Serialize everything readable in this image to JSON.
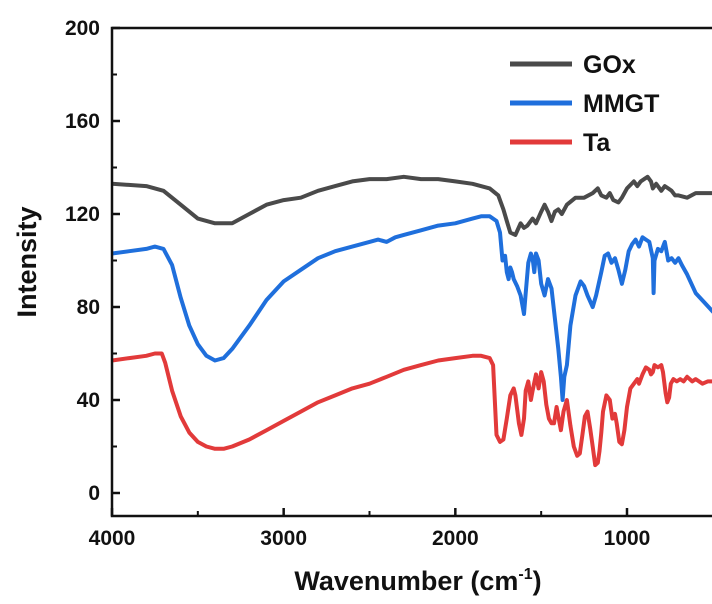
{
  "chart_data": {
    "type": "line",
    "title": "",
    "xlabel": "Wavenumber (cm",
    "xlabel_sup": "-1",
    "xlabel_close": ")",
    "ylabel": "Intensity",
    "xlim": [
      4000,
      500
    ],
    "ylim": [
      -10,
      200
    ],
    "x_reversed": true,
    "x_ticks": [
      4000,
      3000,
      2000,
      1000
    ],
    "y_ticks": [
      0,
      40,
      80,
      120,
      160,
      200
    ],
    "x_tick_labels": [
      "4000",
      "3000",
      "2000",
      "1000"
    ],
    "y_tick_labels": [
      "0",
      "40",
      "80",
      "120",
      "160",
      "200"
    ],
    "grid": false,
    "legend_position": "top-right",
    "series": [
      {
        "name": "GOx",
        "color": "#4a4a4a",
        "points": [
          [
            4000,
            133
          ],
          [
            3800,
            132
          ],
          [
            3700,
            130
          ],
          [
            3600,
            124
          ],
          [
            3500,
            118
          ],
          [
            3400,
            116
          ],
          [
            3300,
            116
          ],
          [
            3200,
            120
          ],
          [
            3100,
            124
          ],
          [
            3000,
            126
          ],
          [
            2900,
            127
          ],
          [
            2800,
            130
          ],
          [
            2700,
            132
          ],
          [
            2600,
            134
          ],
          [
            2500,
            135
          ],
          [
            2400,
            135
          ],
          [
            2300,
            136
          ],
          [
            2200,
            135
          ],
          [
            2100,
            135
          ],
          [
            2000,
            134
          ],
          [
            1900,
            133
          ],
          [
            1800,
            131
          ],
          [
            1750,
            128
          ],
          [
            1720,
            122
          ],
          [
            1700,
            117
          ],
          [
            1680,
            112
          ],
          [
            1650,
            111
          ],
          [
            1620,
            116
          ],
          [
            1600,
            114
          ],
          [
            1580,
            115
          ],
          [
            1550,
            118
          ],
          [
            1530,
            116
          ],
          [
            1500,
            121
          ],
          [
            1480,
            124
          ],
          [
            1460,
            121
          ],
          [
            1440,
            117
          ],
          [
            1420,
            121
          ],
          [
            1400,
            122
          ],
          [
            1380,
            120
          ],
          [
            1350,
            124
          ],
          [
            1300,
            127
          ],
          [
            1250,
            127
          ],
          [
            1200,
            129
          ],
          [
            1170,
            131
          ],
          [
            1150,
            128
          ],
          [
            1120,
            127
          ],
          [
            1100,
            129
          ],
          [
            1080,
            126
          ],
          [
            1050,
            125
          ],
          [
            1030,
            127
          ],
          [
            1000,
            131
          ],
          [
            960,
            134
          ],
          [
            940,
            132
          ],
          [
            920,
            134
          ],
          [
            900,
            135
          ],
          [
            880,
            136
          ],
          [
            860,
            134
          ],
          [
            850,
            131
          ],
          [
            830,
            133
          ],
          [
            800,
            130
          ],
          [
            780,
            132
          ],
          [
            760,
            131
          ],
          [
            740,
            130
          ],
          [
            720,
            128
          ],
          [
            700,
            128
          ],
          [
            650,
            127
          ],
          [
            600,
            129
          ],
          [
            550,
            129
          ],
          [
            500,
            129
          ]
        ]
      },
      {
        "name": "MMGT",
        "color": "#1f6fdc",
        "points": [
          [
            4000,
            103
          ],
          [
            3900,
            104
          ],
          [
            3800,
            105
          ],
          [
            3750,
            106
          ],
          [
            3700,
            105
          ],
          [
            3650,
            98
          ],
          [
            3600,
            84
          ],
          [
            3550,
            72
          ],
          [
            3500,
            64
          ],
          [
            3450,
            59
          ],
          [
            3400,
            57
          ],
          [
            3350,
            58
          ],
          [
            3300,
            62
          ],
          [
            3200,
            72
          ],
          [
            3100,
            83
          ],
          [
            3000,
            91
          ],
          [
            2900,
            96
          ],
          [
            2800,
            101
          ],
          [
            2700,
            104
          ],
          [
            2600,
            106
          ],
          [
            2500,
            108
          ],
          [
            2450,
            109
          ],
          [
            2400,
            108
          ],
          [
            2350,
            110
          ],
          [
            2300,
            111
          ],
          [
            2200,
            113
          ],
          [
            2100,
            115
          ],
          [
            2000,
            116
          ],
          [
            1900,
            118
          ],
          [
            1850,
            119
          ],
          [
            1800,
            119
          ],
          [
            1760,
            117
          ],
          [
            1740,
            112
          ],
          [
            1725,
            100
          ],
          [
            1710,
            102
          ],
          [
            1700,
            95
          ],
          [
            1690,
            92
          ],
          [
            1680,
            97
          ],
          [
            1670,
            95
          ],
          [
            1660,
            92
          ],
          [
            1640,
            89
          ],
          [
            1620,
            85
          ],
          [
            1600,
            77
          ],
          [
            1590,
            86
          ],
          [
            1575,
            99
          ],
          [
            1560,
            103
          ],
          [
            1550,
            101
          ],
          [
            1540,
            95
          ],
          [
            1530,
            103
          ],
          [
            1515,
            100
          ],
          [
            1500,
            90
          ],
          [
            1480,
            85
          ],
          [
            1460,
            92
          ],
          [
            1440,
            88
          ],
          [
            1420,
            75
          ],
          [
            1400,
            62
          ],
          [
            1385,
            50
          ],
          [
            1375,
            40
          ],
          [
            1365,
            50
          ],
          [
            1350,
            55
          ],
          [
            1330,
            72
          ],
          [
            1300,
            85
          ],
          [
            1270,
            91
          ],
          [
            1250,
            89
          ],
          [
            1230,
            85
          ],
          [
            1200,
            80
          ],
          [
            1180,
            85
          ],
          [
            1150,
            95
          ],
          [
            1130,
            102
          ],
          [
            1110,
            103
          ],
          [
            1090,
            99
          ],
          [
            1070,
            101
          ],
          [
            1050,
            96
          ],
          [
            1030,
            90
          ],
          [
            1010,
            96
          ],
          [
            990,
            104
          ],
          [
            970,
            107
          ],
          [
            950,
            109
          ],
          [
            930,
            106
          ],
          [
            910,
            110
          ],
          [
            890,
            109
          ],
          [
            870,
            108
          ],
          [
            850,
            101
          ],
          [
            845,
            86
          ],
          [
            840,
            100
          ],
          [
            820,
            105
          ],
          [
            800,
            104
          ],
          [
            780,
            108
          ],
          [
            760,
            100
          ],
          [
            740,
            101
          ],
          [
            720,
            99
          ],
          [
            700,
            101
          ],
          [
            680,
            98
          ],
          [
            650,
            94
          ],
          [
            600,
            86
          ],
          [
            550,
            82
          ],
          [
            500,
            78
          ]
        ]
      },
      {
        "name": "Ta",
        "color": "#e23a3a",
        "points": [
          [
            4000,
            57
          ],
          [
            3900,
            58
          ],
          [
            3800,
            59
          ],
          [
            3750,
            60
          ],
          [
            3710,
            60
          ],
          [
            3690,
            56
          ],
          [
            3650,
            44
          ],
          [
            3600,
            33
          ],
          [
            3550,
            26
          ],
          [
            3500,
            22
          ],
          [
            3450,
            20
          ],
          [
            3400,
            19
          ],
          [
            3350,
            19
          ],
          [
            3300,
            20
          ],
          [
            3200,
            23
          ],
          [
            3100,
            27
          ],
          [
            3000,
            31
          ],
          [
            2900,
            35
          ],
          [
            2800,
            39
          ],
          [
            2700,
            42
          ],
          [
            2600,
            45
          ],
          [
            2500,
            47
          ],
          [
            2400,
            50
          ],
          [
            2300,
            53
          ],
          [
            2200,
            55
          ],
          [
            2100,
            57
          ],
          [
            2000,
            58
          ],
          [
            1900,
            59
          ],
          [
            1850,
            59
          ],
          [
            1800,
            58
          ],
          [
            1780,
            55
          ],
          [
            1770,
            40
          ],
          [
            1760,
            25
          ],
          [
            1740,
            22
          ],
          [
            1720,
            23
          ],
          [
            1700,
            32
          ],
          [
            1680,
            42
          ],
          [
            1660,
            45
          ],
          [
            1650,
            42
          ],
          [
            1630,
            30
          ],
          [
            1615,
            25
          ],
          [
            1600,
            32
          ],
          [
            1590,
            44
          ],
          [
            1575,
            48
          ],
          [
            1560,
            40
          ],
          [
            1550,
            44
          ],
          [
            1530,
            51
          ],
          [
            1515,
            45
          ],
          [
            1500,
            52
          ],
          [
            1485,
            48
          ],
          [
            1470,
            38
          ],
          [
            1455,
            32
          ],
          [
            1440,
            30
          ],
          [
            1425,
            30
          ],
          [
            1410,
            37
          ],
          [
            1400,
            33
          ],
          [
            1385,
            27
          ],
          [
            1370,
            35
          ],
          [
            1350,
            40
          ],
          [
            1330,
            29
          ],
          [
            1310,
            20
          ],
          [
            1290,
            16
          ],
          [
            1275,
            17
          ],
          [
            1260,
            25
          ],
          [
            1245,
            33
          ],
          [
            1230,
            35
          ],
          [
            1215,
            28
          ],
          [
            1200,
            20
          ],
          [
            1185,
            12
          ],
          [
            1170,
            13
          ],
          [
            1160,
            18
          ],
          [
            1150,
            26
          ],
          [
            1140,
            35
          ],
          [
            1120,
            42
          ],
          [
            1100,
            40
          ],
          [
            1085,
            32
          ],
          [
            1070,
            34
          ],
          [
            1060,
            30
          ],
          [
            1045,
            22
          ],
          [
            1030,
            21
          ],
          [
            1015,
            27
          ],
          [
            1000,
            37
          ],
          [
            980,
            45
          ],
          [
            960,
            47
          ],
          [
            940,
            49
          ],
          [
            930,
            47
          ],
          [
            910,
            51
          ],
          [
            890,
            54
          ],
          [
            870,
            53
          ],
          [
            860,
            51
          ],
          [
            850,
            52
          ],
          [
            840,
            55
          ],
          [
            820,
            54
          ],
          [
            800,
            55
          ],
          [
            790,
            52
          ],
          [
            775,
            43
          ],
          [
            765,
            39
          ],
          [
            755,
            41
          ],
          [
            745,
            47
          ],
          [
            730,
            49
          ],
          [
            710,
            48
          ],
          [
            690,
            49
          ],
          [
            670,
            48
          ],
          [
            650,
            50
          ],
          [
            620,
            48
          ],
          [
            600,
            49
          ],
          [
            560,
            47
          ],
          [
            530,
            48
          ],
          [
            500,
            48
          ]
        ]
      }
    ]
  }
}
